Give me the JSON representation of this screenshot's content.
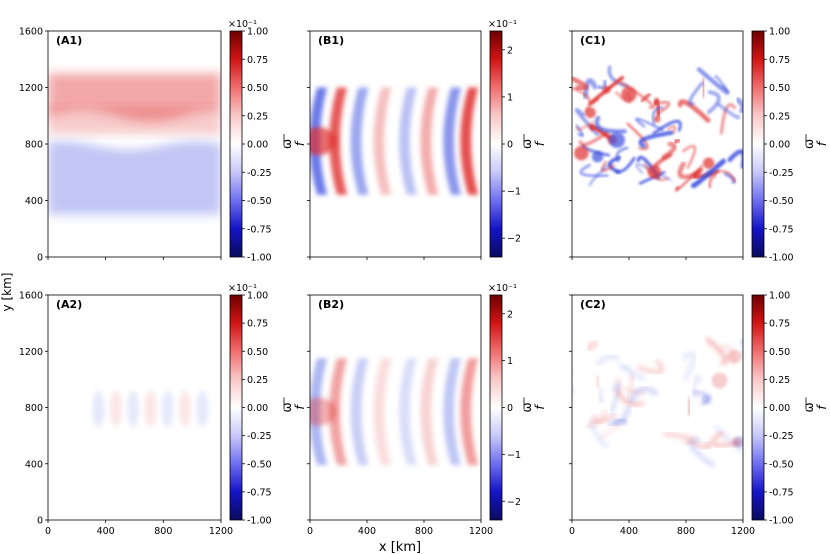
{
  "figure": {
    "xlabel": "x [km]",
    "ylabel": "y [km]"
  },
  "chart_data": [
    {
      "panel": "A1",
      "type": "heatmap",
      "label": "(A1)",
      "xlim": [
        0,
        1200
      ],
      "ylim": [
        0,
        1600
      ],
      "xticks": [],
      "yticks": [
        0,
        400,
        800,
        1200,
        1600
      ],
      "description_field": "zonal band: positive vorticity 800-1300 km, negative 300-800 km, slight waviness",
      "colorbar": {
        "min": -1.0,
        "max": 1.0,
        "ticks": [
          "-1.00",
          "-0.75",
          "-0.50",
          "-0.25",
          "0.00",
          "0.25",
          "0.50",
          "0.75",
          "1.00"
        ],
        "scale_label": "×10⁻¹",
        "label": "ω/f"
      }
    },
    {
      "panel": "B1",
      "type": "heatmap",
      "label": "(B1)",
      "xlim": [
        0,
        1200
      ],
      "ylim": [
        0,
        1600
      ],
      "xticks": [],
      "yticks": [],
      "colorbar": {
        "min": -2.4,
        "max": 2.4,
        "ticks": [
          "−2",
          "−1",
          "0",
          "1",
          "2"
        ],
        "scale_label": "×10⁻¹",
        "label": "ω/f"
      }
    },
    {
      "panel": "C1",
      "type": "heatmap",
      "label": "(C1)",
      "xlim": [
        0,
        1200
      ],
      "ylim": [
        0,
        1600
      ],
      "xticks": [],
      "yticks": [],
      "colorbar": {
        "min": -1.0,
        "max": 1.0,
        "ticks": [
          "-1.00",
          "-0.75",
          "-0.50",
          "-0.25",
          "0.00",
          "0.25",
          "0.50",
          "0.75",
          "1.00"
        ],
        "scale_label": "",
        "label": "ω/f"
      }
    },
    {
      "panel": "A2",
      "type": "heatmap",
      "label": "(A2)",
      "xlim": [
        0,
        1200
      ],
      "ylim": [
        0,
        1600
      ],
      "xticks": [
        0,
        400,
        800,
        1200
      ],
      "yticks": [
        0,
        400,
        800,
        1200,
        1600
      ],
      "colorbar": {
        "min": -1.0,
        "max": 1.0,
        "ticks": [
          "-1.00",
          "-0.75",
          "-0.50",
          "-0.25",
          "0.00",
          "0.25",
          "0.50",
          "0.75",
          "1.00"
        ],
        "scale_label": "×10⁻¹",
        "label": "ω/f"
      }
    },
    {
      "panel": "B2",
      "type": "heatmap",
      "label": "(B2)",
      "xlim": [
        0,
        1200
      ],
      "ylim": [
        0,
        1600
      ],
      "xticks": [
        0,
        400,
        800,
        1200
      ],
      "yticks": [],
      "colorbar": {
        "min": -2.4,
        "max": 2.4,
        "ticks": [
          "−2",
          "−1",
          "0",
          "1",
          "2"
        ],
        "scale_label": "×10⁻¹",
        "label": "ω/f"
      }
    },
    {
      "panel": "C2",
      "type": "heatmap",
      "label": "(C2)",
      "xlim": [
        0,
        1200
      ],
      "ylim": [
        0,
        1600
      ],
      "xticks": [
        0,
        400,
        800,
        1200
      ],
      "yticks": [],
      "colorbar": {
        "min": -1.0,
        "max": 1.0,
        "ticks": [
          "-1.00",
          "-0.75",
          "-0.50",
          "-0.25",
          "0.00",
          "0.25",
          "0.50",
          "0.75",
          "1.00"
        ],
        "scale_label": "",
        "label": "ω/f"
      }
    }
  ],
  "colors": {
    "cmap": [
      "#0a0a5e",
      "#1414c8",
      "#6e6ef0",
      "#c8c8fa",
      "#ffffff",
      "#fac8c8",
      "#f06e6e",
      "#d21414",
      "#6e0000"
    ],
    "positive": "#e03030",
    "negative": "#3a4ee0"
  }
}
